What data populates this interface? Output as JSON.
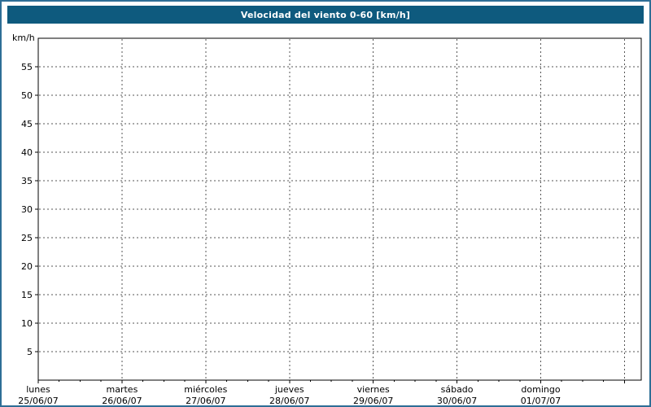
{
  "title": "Velocidad del viento 0-60 [km/h]",
  "colors": {
    "header_bg": "#0e5a7e",
    "header_text": "#ffffff",
    "page_border": "#2e6e96",
    "plot_bg": "#ffffff",
    "plot_border": "#000000",
    "grid": "#555555",
    "axis_text": "#000000"
  },
  "chart_data": {
    "type": "line",
    "title": "Velocidad del viento 0-60 [km/h]",
    "ylabel": "km/h",
    "ylim": [
      0,
      60
    ],
    "y_ticks": [
      5,
      10,
      15,
      20,
      25,
      30,
      35,
      40,
      45,
      50,
      55
    ],
    "span_days": 7.2,
    "x_days": [
      {
        "name": "lunes",
        "date": "25/06/07"
      },
      {
        "name": "martes",
        "date": "26/06/07"
      },
      {
        "name": "miércoles",
        "date": "27/06/07"
      },
      {
        "name": "jueves",
        "date": "28/06/07"
      },
      {
        "name": "viernes",
        "date": "29/06/07"
      },
      {
        "name": "sábado",
        "date": "30/06/07"
      },
      {
        "name": "domingo",
        "date": "01/07/07"
      }
    ],
    "series": [],
    "grid": true,
    "legend": null
  }
}
